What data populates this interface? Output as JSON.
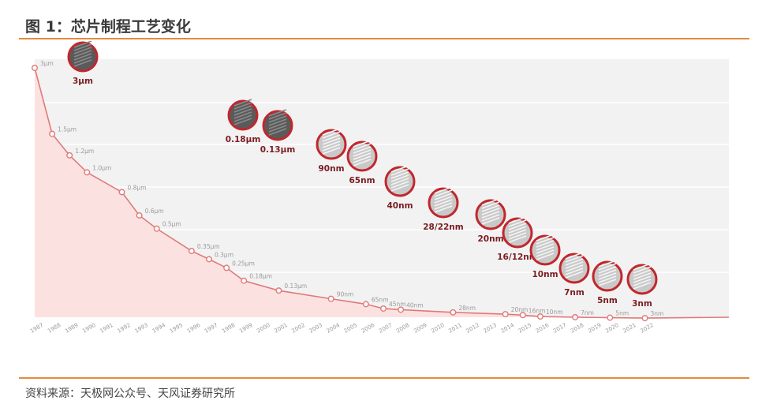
{
  "header": {
    "title": "图 1：芯片制程工艺变化"
  },
  "footer": {
    "source": "资料来源：天极网公众号、天风证券研究所"
  },
  "colors": {
    "accent": "#e58a3c",
    "line": "#e07a78",
    "area": "#fbe2e1",
    "marker_ring": "#c0272d"
  },
  "chart_data": {
    "type": "area",
    "title": "",
    "xlabel": "",
    "ylabel": "",
    "grid": true,
    "legend": "none",
    "x": [
      "1987",
      "1988",
      "1989",
      "1990",
      "1991",
      "1992",
      "1993",
      "1994",
      "1995",
      "1996",
      "1997",
      "1998",
      "1999",
      "2000",
      "2001",
      "2002",
      "2003",
      "2004",
      "2005",
      "2006",
      "2007",
      "2008",
      "2009",
      "2010",
      "2011",
      "2012",
      "2013",
      "2014",
      "2015",
      "2016",
      "2017",
      "2018",
      "2019",
      "2020",
      "2021",
      "2022"
    ],
    "series": [
      {
        "values_um": [
          3.0,
          1.5,
          1.2,
          1.0,
          null,
          0.8,
          0.6,
          0.5,
          null,
          0.35,
          0.3,
          0.25,
          0.18,
          null,
          0.13,
          null,
          null,
          0.09,
          null,
          0.065,
          0.045,
          0.04,
          null,
          null,
          0.028,
          null,
          null,
          0.02,
          0.016,
          0.01,
          null,
          0.007,
          null,
          0.005,
          null,
          0.003
        ],
        "point_labels": [
          "3μm",
          "1.5μm",
          "1.2μm",
          "1.0μm",
          "",
          "0.8μm",
          "0.6μm",
          "0.5μm",
          "",
          "0.35μm",
          "0.3μm",
          "0.25μm",
          "0.18μm",
          "",
          "0.13μm",
          "",
          "",
          "90nm",
          "",
          "65nm",
          "45nm",
          "40nm",
          "",
          "",
          "28nm",
          "",
          "",
          "20nm",
          "16nm",
          "10nm",
          "",
          "7nm",
          "",
          "5nm",
          "",
          "3nm"
        ]
      }
    ],
    "annotations": [
      {
        "label": "3μm",
        "icon": "chip-cross-section-icon"
      },
      {
        "label": "0.18μm",
        "icon": "chip-cross-section-icon"
      },
      {
        "label": "0.13μm",
        "icon": "chip-cross-section-icon"
      },
      {
        "label": "90nm",
        "icon": "chip-cross-section-icon"
      },
      {
        "label": "65nm",
        "icon": "chip-cross-section-icon"
      },
      {
        "label": "40nm",
        "icon": "chip-cross-section-icon"
      },
      {
        "label": "28/22nm",
        "icon": "chip-cross-section-icon"
      },
      {
        "label": "20nm",
        "icon": "chip-cross-section-icon"
      },
      {
        "label": "16/12nm",
        "icon": "chip-cross-section-icon"
      },
      {
        "label": "10nm",
        "icon": "chip-cross-section-icon"
      },
      {
        "label": "7nm",
        "icon": "chip-cross-section-icon"
      },
      {
        "label": "5nm",
        "icon": "chip-cross-section-icon"
      },
      {
        "label": "3nm",
        "icon": "chip-cross-section-icon"
      }
    ]
  }
}
